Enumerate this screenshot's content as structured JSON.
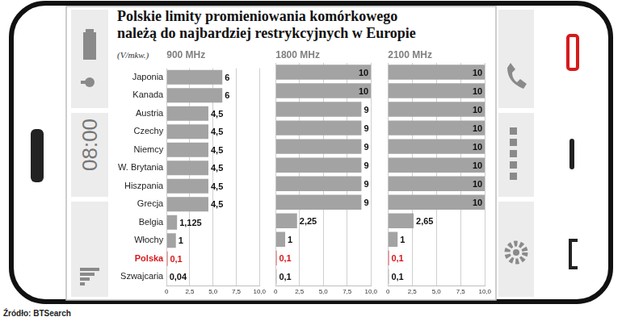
{
  "title": "Polskie limity promieniowania komórkowego należą do najbardziej restrykcyjnych w Europie",
  "subtitle": "(V/mkw.)",
  "source": "Źródło: BTSearch",
  "annotations": [
    "08:00"
  ],
  "chart_data": [
    {
      "type": "bar",
      "title": "900 MHz",
      "orientation": "horizontal",
      "data_labels": true,
      "grid": true,
      "categories": [
        "Japonia",
        "Kanada",
        "Austria",
        "Czechy",
        "Niemcy",
        "W. Brytania",
        "Hiszpania",
        "Grecja",
        "Belgia",
        "Włochy",
        "Polska",
        "Szwajcaria"
      ],
      "values": [
        6,
        6,
        4.5,
        4.5,
        4.5,
        4.5,
        4.5,
        4.5,
        1.125,
        1,
        0.1,
        0.04
      ],
      "value_labels": [
        "6",
        "6",
        "4,5",
        "4,5",
        "4,5",
        "4,5",
        "4,5",
        "4,5",
        "1,125",
        "1",
        "0,1",
        "0,04"
      ],
      "colors": [
        "#a3a3a3",
        "#a3a3a3",
        "#a3a3a3",
        "#a3a3a3",
        "#a3a3a3",
        "#a3a3a3",
        "#a3a3a3",
        "#a3a3a3",
        "#a3a3a3",
        "#a3a3a3",
        "#d7191c",
        "#a3a3a3"
      ],
      "xlim": [
        0,
        10
      ],
      "xticks": [
        0,
        {
          "value": 2.5,
          "label": "2,5"
        },
        {
          "value": 5,
          "label": "5,0"
        },
        {
          "value": 7.5,
          "label": "7,5"
        },
        {
          "value": 10,
          "label": "10,0"
        }
      ]
    },
    {
      "type": "bar",
      "title": "1800 MHz",
      "orientation": "horizontal",
      "data_labels": true,
      "grid": true,
      "tick_labels": "x",
      "categories": [
        "Japonia",
        "Kanada",
        "Austria",
        "Czechy",
        "Niemcy",
        "W. Brytania",
        "Hiszpania",
        "Grecja",
        "Belgia",
        "Włochy",
        "Polska",
        "Szwajcaria"
      ],
      "values": [
        10,
        10,
        9,
        9,
        9,
        9,
        9,
        9,
        2.25,
        1,
        0.1,
        0.1
      ],
      "value_labels": [
        "10",
        "10",
        "9",
        "9",
        "9",
        "9",
        "9",
        "9",
        "2,25",
        "1",
        "0,1",
        "0,1"
      ],
      "colors": [
        "#a3a3a3",
        "#a3a3a3",
        "#a3a3a3",
        "#a3a3a3",
        "#a3a3a3",
        "#a3a3a3",
        "#a3a3a3",
        "#a3a3a3",
        "#a3a3a3",
        "#a3a3a3",
        "#d7191c",
        "#a3a3a3"
      ],
      "xlim": [
        0,
        10
      ],
      "xticks": [
        0,
        {
          "value": 2.5,
          "label": "2,5"
        },
        {
          "value": 5,
          "label": "5,0"
        },
        {
          "value": 7.5,
          "label": "7,5"
        },
        {
          "value": 10,
          "label": "10,0"
        }
      ]
    },
    {
      "type": "bar",
      "title": "2100 MHz",
      "orientation": "horizontal",
      "data_labels": true,
      "grid": true,
      "tick_labels": "x",
      "categories": [
        "Japonia",
        "Kanada",
        "Austria",
        "Czechy",
        "Niemcy",
        "W. Brytania",
        "Hiszpania",
        "Grecja",
        "Belgia",
        "Włochy",
        "Polska",
        "Szwajcaria"
      ],
      "values": [
        10,
        10,
        10,
        10,
        10,
        10,
        10,
        10,
        2.65,
        1,
        0.1,
        0.1
      ],
      "value_labels": [
        "10",
        "10",
        "10",
        "10",
        "10",
        "10",
        "10",
        "10",
        "2,65",
        "1",
        "0,1",
        "0,1"
      ],
      "colors": [
        "#a3a3a3",
        "#a3a3a3",
        "#a3a3a3",
        "#a3a3a3",
        "#a3a3a3",
        "#a3a3a3",
        "#a3a3a3",
        "#a3a3a3",
        "#a3a3a3",
        "#a3a3a3",
        "#d7191c",
        "#a3a3a3"
      ],
      "xlim": [
        0,
        10
      ],
      "xticks": [
        0,
        {
          "value": 2.5,
          "label": "2,5"
        },
        {
          "value": 5,
          "label": "5,0"
        },
        {
          "value": 7.5,
          "label": "7,5"
        },
        {
          "value": 10,
          "label": "10,0"
        }
      ]
    }
  ]
}
